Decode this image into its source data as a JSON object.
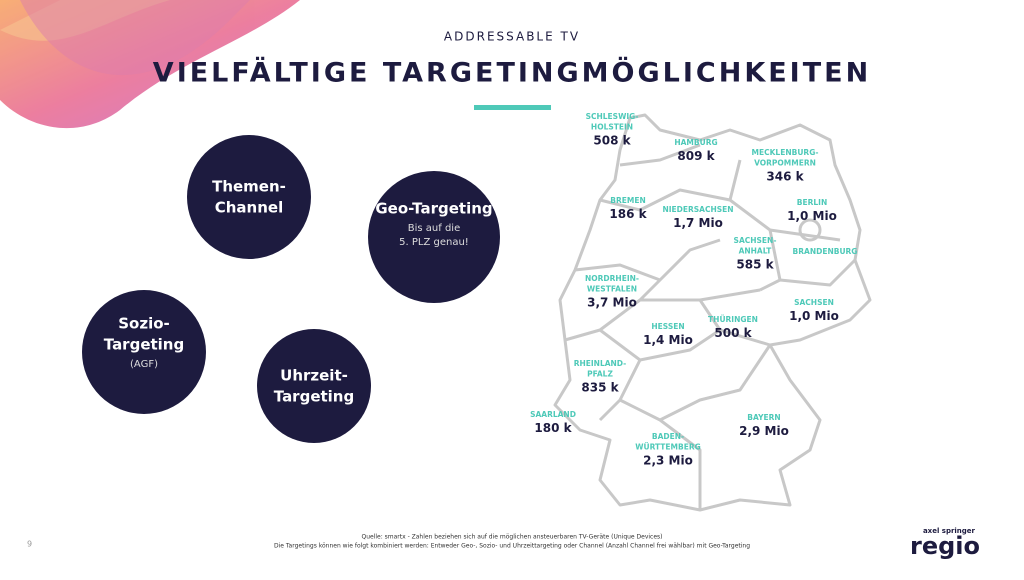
{
  "header": {
    "subtitle": "ADDRESSABLE TV",
    "title": "VIELFÄLTIGE TARGETINGMÖGLICHKEITEN"
  },
  "circles": [
    {
      "title": [
        "Themen-",
        "Channel"
      ],
      "text": []
    },
    {
      "title": [
        "Geo-Targeting"
      ],
      "text": [
        "Bis auf die",
        "5. PLZ genau!"
      ]
    },
    {
      "title": [
        "Sozio-",
        "Targeting"
      ],
      "text": [
        "(AGF)"
      ]
    },
    {
      "title": [
        "Uhrzeit-",
        "Targeting"
      ],
      "text": []
    }
  ],
  "regions": [
    {
      "label": [
        "SCHLESWIG-",
        "HOLSTEIN"
      ],
      "value": "508 k"
    },
    {
      "label": [
        "HAMBURG"
      ],
      "value": "809 k"
    },
    {
      "label": [
        "MECKLENBURG-",
        "VORPOMMERN"
      ],
      "value": "346 k"
    },
    {
      "label": [
        "BREMEN"
      ],
      "value": "186 k"
    },
    {
      "label": [
        "NIEDERSACHSEN"
      ],
      "value": "1,7 Mio"
    },
    {
      "label": [
        "BERLIN"
      ],
      "value": "1,0 Mio"
    },
    {
      "label": [
        "SACHSEN-",
        "ANHALT"
      ],
      "value": "585 k"
    },
    {
      "label": [
        "BRANDENBURG"
      ],
      "value": null
    },
    {
      "label": [
        "NORDRHEIN-",
        "WESTFALEN"
      ],
      "value": "3,7 Mio"
    },
    {
      "label": [
        "SACHSEN"
      ],
      "value": "1,0 Mio"
    },
    {
      "label": [
        "THÜRINGEN"
      ],
      "value": "500 k"
    },
    {
      "label": [
        "HESSEN"
      ],
      "value": "1,4 Mio"
    },
    {
      "label": [
        "RHEINLAND-",
        "PFALZ"
      ],
      "value": "835 k"
    },
    {
      "label": [
        "SAARLAND"
      ],
      "value": "180 k"
    },
    {
      "label": [
        "BAYERN"
      ],
      "value": "2,9 Mio"
    },
    {
      "label": [
        "BADEN-",
        "WÜRTTEMBERG"
      ],
      "value": "2,3 Mio"
    }
  ],
  "footer": {
    "page": "9",
    "notes": [
      "Quelle: smartx - Zahlen beziehen sich auf die möglichen ansteuerbaren TV-Geräte (Unique Devices)",
      "Die Targetings können wie folgt kombiniert werden: Entweder Geo-, Sozio- und Uhrzeittargeting oder Channel (Anzahl Channel frei wählbar) mit Geo-Targeting"
    ],
    "logo_top": "axel springer",
    "logo": "regio"
  }
}
